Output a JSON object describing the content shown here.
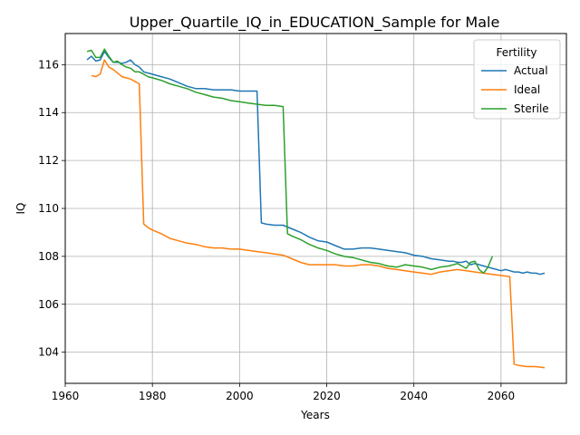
{
  "chart_data": {
    "type": "line",
    "title": "Upper_Quartile_IQ_in_EDUCATION_Sample for Male",
    "xlabel": "Years",
    "ylabel": "IQ",
    "xlim": [
      1960,
      2075
    ],
    "ylim": [
      102.7,
      117.3
    ],
    "xticks": [
      1960,
      1980,
      2000,
      2020,
      2040,
      2060
    ],
    "yticks": [
      104,
      106,
      108,
      110,
      112,
      114,
      116
    ],
    "grid": true,
    "legend": {
      "title": "Fertility",
      "placement": "top-right"
    },
    "series": [
      {
        "name": "Actual",
        "color": "#1f77b4",
        "x": [
          1965,
          1966,
          1967,
          1968,
          1969,
          1970,
          1971,
          1972,
          1973,
          1974,
          1975,
          1976,
          1977,
          1978,
          1979,
          1980,
          1982,
          1984,
          1986,
          1988,
          1990,
          1992,
          1994,
          1996,
          1998,
          2000,
          2002,
          2004,
          2005,
          2006,
          2008,
          2010,
          2012,
          2014,
          2016,
          2018,
          2020,
          2022,
          2024,
          2026,
          2028,
          2030,
          2032,
          2034,
          2036,
          2038,
          2040,
          2042,
          2044,
          2046,
          2048,
          2049,
          2050,
          2051,
          2052,
          2053,
          2054,
          2055,
          2056,
          2057,
          2058,
          2059,
          2060,
          2061,
          2062,
          2063,
          2064,
          2065,
          2066,
          2067,
          2068,
          2069,
          2070
        ],
        "values": [
          116.2,
          116.35,
          116.15,
          116.2,
          116.55,
          116.3,
          116.1,
          116.1,
          116.05,
          116.1,
          116.2,
          116.0,
          115.9,
          115.7,
          115.65,
          115.6,
          115.5,
          115.4,
          115.25,
          115.1,
          115.0,
          115.0,
          114.95,
          114.95,
          114.95,
          114.9,
          114.9,
          114.9,
          109.4,
          109.35,
          109.3,
          109.3,
          109.15,
          109.0,
          108.8,
          108.65,
          108.6,
          108.45,
          108.3,
          108.3,
          108.35,
          108.35,
          108.3,
          108.25,
          108.2,
          108.15,
          108.05,
          108.0,
          107.9,
          107.85,
          107.8,
          107.8,
          107.75,
          107.75,
          107.8,
          107.65,
          107.7,
          107.65,
          107.6,
          107.55,
          107.5,
          107.45,
          107.4,
          107.45,
          107.4,
          107.35,
          107.35,
          107.3,
          107.35,
          107.3,
          107.3,
          107.25,
          107.3
        ]
      },
      {
        "name": "Ideal",
        "color": "#ff7f0e",
        "x": [
          1966,
          1967,
          1968,
          1969,
          1970,
          1971,
          1972,
          1973,
          1974,
          1975,
          1976,
          1977,
          1978,
          1979,
          1980,
          1982,
          1984,
          1986,
          1988,
          1990,
          1992,
          1994,
          1996,
          1998,
          2000,
          2002,
          2004,
          2006,
          2008,
          2010,
          2012,
          2014,
          2016,
          2018,
          2020,
          2022,
          2024,
          2026,
          2028,
          2030,
          2032,
          2034,
          2036,
          2038,
          2040,
          2042,
          2044,
          2046,
          2048,
          2050,
          2052,
          2054,
          2056,
          2058,
          2060,
          2062,
          2063,
          2064,
          2066,
          2068,
          2070
        ],
        "values": [
          115.55,
          115.5,
          115.6,
          116.2,
          115.9,
          115.8,
          115.65,
          115.5,
          115.45,
          115.4,
          115.3,
          115.2,
          109.35,
          109.2,
          109.1,
          108.95,
          108.75,
          108.65,
          108.55,
          108.5,
          108.4,
          108.35,
          108.35,
          108.3,
          108.3,
          108.25,
          108.2,
          108.15,
          108.1,
          108.05,
          107.9,
          107.75,
          107.65,
          107.65,
          107.65,
          107.65,
          107.6,
          107.6,
          107.65,
          107.65,
          107.6,
          107.5,
          107.45,
          107.4,
          107.35,
          107.3,
          107.25,
          107.35,
          107.4,
          107.45,
          107.4,
          107.35,
          107.3,
          107.25,
          107.2,
          107.15,
          103.5,
          103.45,
          103.4,
          103.4,
          103.35
        ]
      },
      {
        "name": "Sterile",
        "color": "#2ca02c",
        "x": [
          1965,
          1966,
          1967,
          1968,
          1969,
          1970,
          1971,
          1972,
          1973,
          1974,
          1975,
          1976,
          1977,
          1978,
          1979,
          1980,
          1982,
          1984,
          1986,
          1988,
          1990,
          1992,
          1994,
          1996,
          1998,
          2000,
          2002,
          2004,
          2006,
          2008,
          2010,
          2011,
          2012,
          2014,
          2016,
          2018,
          2020,
          2022,
          2024,
          2026,
          2028,
          2030,
          2032,
          2034,
          2036,
          2038,
          2040,
          2042,
          2044,
          2046,
          2048,
          2050,
          2051,
          2052,
          2053,
          2054,
          2055,
          2056,
          2057,
          2058
        ],
        "values": [
          116.55,
          116.6,
          116.3,
          116.3,
          116.65,
          116.35,
          116.1,
          116.15,
          116.0,
          115.9,
          115.85,
          115.7,
          115.7,
          115.6,
          115.5,
          115.45,
          115.35,
          115.2,
          115.1,
          115.0,
          114.85,
          114.75,
          114.65,
          114.6,
          114.5,
          114.45,
          114.4,
          114.35,
          114.3,
          114.3,
          114.25,
          108.95,
          108.85,
          108.7,
          108.5,
          108.35,
          108.25,
          108.1,
          108.0,
          107.95,
          107.85,
          107.75,
          107.7,
          107.6,
          107.55,
          107.65,
          107.6,
          107.55,
          107.45,
          107.55,
          107.6,
          107.7,
          107.6,
          107.5,
          107.75,
          107.8,
          107.45,
          107.3,
          107.55,
          108.0
        ]
      }
    ]
  }
}
